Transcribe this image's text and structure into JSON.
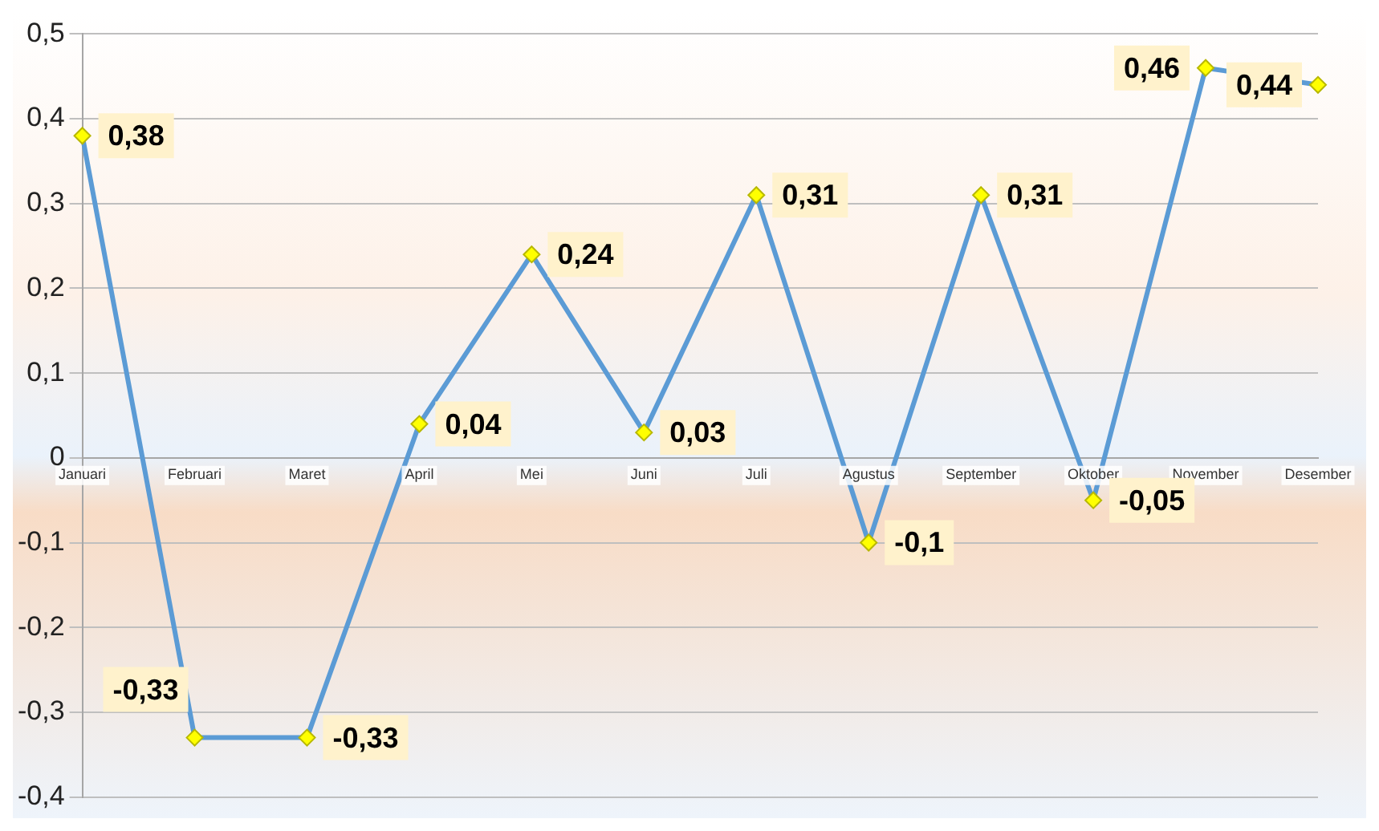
{
  "chart_data": {
    "type": "line",
    "categories": [
      "Januari",
      "Februari",
      "Maret",
      "April",
      "Mei",
      "Juni",
      "Juli",
      "Agustus",
      "September",
      "Oktober",
      "November",
      "Desember"
    ],
    "series": [
      {
        "color": "#5b9bd5",
        "values": [
          0.38,
          -0.33,
          -0.33,
          0.04,
          0.24,
          0.03,
          0.31,
          -0.1,
          0.31,
          -0.05,
          0.46,
          0.44
        ],
        "value_labels": [
          "0,38",
          "-0,33",
          "-0,33",
          "0,04",
          "0,24",
          "0,03",
          "0,31",
          "-0,1",
          "0,31",
          "-0,05",
          "0,46",
          "0,44"
        ]
      }
    ],
    "ylim": [
      -0.4,
      0.5
    ],
    "yticks": [
      {
        "value": -0.4,
        "label": "-0,4"
      },
      {
        "value": -0.3,
        "label": "-0,3"
      },
      {
        "value": -0.2,
        "label": "-0,2"
      },
      {
        "value": -0.1,
        "label": "-0,1"
      },
      {
        "value": 0,
        "label": "0"
      },
      {
        "value": 0.1,
        "label": "0,1"
      },
      {
        "value": 0.2,
        "label": "0,2"
      },
      {
        "value": 0.3,
        "label": "0,3"
      },
      {
        "value": 0.4,
        "label": "0,4"
      },
      {
        "value": 0.5,
        "label": "0,5"
      }
    ],
    "grid": "y",
    "legend": false,
    "marker": "diamond",
    "line_style": "solid"
  }
}
